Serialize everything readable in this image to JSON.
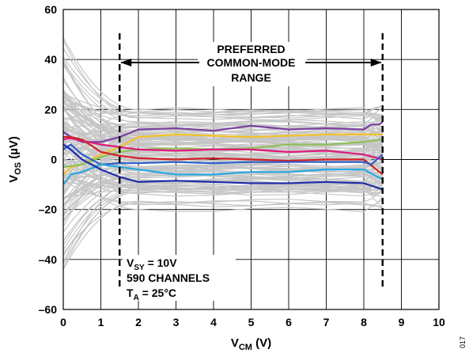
{
  "chart_data": {
    "type": "line",
    "xlabel": {
      "main": "V",
      "sub": "CM",
      "rest": " (V)"
    },
    "ylabel": {
      "main": "V",
      "sub": "OS",
      "rest": " (µV)"
    },
    "xlim": [
      0,
      10
    ],
    "ylim": [
      -60,
      60
    ],
    "x_ticks": [
      "0",
      "1",
      "2",
      "3",
      "4",
      "5",
      "6",
      "7",
      "8",
      "9",
      "10"
    ],
    "y_ticks": [
      "60",
      "40",
      "20",
      "0",
      "–20",
      "–40",
      "–60"
    ],
    "grid": true,
    "annotation_range": {
      "lines": [
        "PREFERRED",
        "COMMON-MODE",
        "RANGE"
      ],
      "x_start": 1.5,
      "x_end": 8.5
    },
    "conditions": {
      "line1": {
        "main": "V",
        "sub": "SY",
        "rest": " = 10V"
      },
      "line2": "590 CHANNELS",
      "line3": {
        "main": "T",
        "sub": "A",
        "rest": " = 25°C"
      }
    },
    "figure_id": "017",
    "colors": {
      "gray": "#c6c6c6",
      "purple": "#7b3fa0",
      "yellow": "#f6c12a",
      "green": "#8fbf5a",
      "magenta": "#e0187a",
      "red": "#d22027",
      "dark_blue": "#1f2ca8",
      "light_blue": "#29a8e0",
      "blue": "#2a5fc9"
    },
    "series": [
      {
        "color": "purple",
        "x": [
          0,
          0.2,
          0.5,
          1,
          1.5,
          2,
          3,
          4,
          5,
          6,
          7,
          8,
          8.2,
          8.4,
          8.5
        ],
        "y": [
          11,
          9,
          7,
          7,
          9,
          12,
          12.5,
          11.5,
          13.5,
          12,
          12.5,
          12,
          14,
          14,
          15
        ]
      },
      {
        "color": "yellow",
        "x": [
          0,
          0.2,
          0.5,
          1,
          1.5,
          2,
          3,
          4,
          5,
          6,
          7,
          8,
          8.5
        ],
        "y": [
          -6,
          -3,
          -2,
          2,
          5,
          9,
          10,
          9.5,
          9,
          9.5,
          10,
          10,
          10
        ]
      },
      {
        "color": "green",
        "x": [
          0,
          0.5,
          1,
          1.5,
          2,
          3,
          4,
          5,
          6,
          7,
          8,
          8.5
        ],
        "y": [
          -3,
          -2,
          1,
          3,
          4,
          4.5,
          4,
          4.5,
          6,
          6,
          7,
          8
        ]
      },
      {
        "color": "magenta",
        "x": [
          0,
          0.2,
          0.5,
          1,
          1.5,
          2,
          3,
          4,
          5,
          6,
          7,
          8,
          8.5
        ],
        "y": [
          8,
          8.5,
          7.5,
          6,
          5,
          4,
          3.5,
          4,
          4,
          3,
          3.5,
          2,
          0
        ]
      },
      {
        "color": "red",
        "x": [
          0,
          0.2,
          0.5,
          1,
          1.5,
          2,
          3,
          4,
          5,
          6,
          7,
          8,
          8.5
        ],
        "y": [
          9,
          9,
          8,
          3,
          1.5,
          0.5,
          0,
          0.5,
          0,
          -0.5,
          0,
          0,
          -6
        ]
      },
      {
        "color": "blue",
        "x": [
          0,
          0.2,
          0.5,
          1,
          1.5,
          2,
          3,
          4,
          5,
          6,
          7,
          8,
          8.2,
          8.5
        ],
        "y": [
          4,
          6,
          2,
          -2,
          -1.5,
          -1.5,
          -1,
          -1.5,
          -1,
          -1,
          -1,
          -1,
          -2,
          2
        ]
      },
      {
        "color": "light_blue",
        "x": [
          0,
          0.2,
          0.5,
          1,
          1.5,
          2,
          3,
          4,
          5,
          6,
          7,
          8,
          8.5
        ],
        "y": [
          -10,
          -6,
          -5,
          -2,
          -3,
          -4,
          -6,
          -6,
          -5,
          -5,
          -4,
          -4,
          -8
        ]
      },
      {
        "color": "dark_blue",
        "x": [
          0,
          0.2,
          0.5,
          1,
          1.5,
          2,
          3,
          4,
          5,
          6,
          7,
          8,
          8.5
        ],
        "y": [
          6,
          4,
          0,
          -4,
          -7,
          -9,
          -8.5,
          -9,
          -9.5,
          -9.5,
          -9,
          -9.5,
          -12
        ]
      }
    ]
  }
}
